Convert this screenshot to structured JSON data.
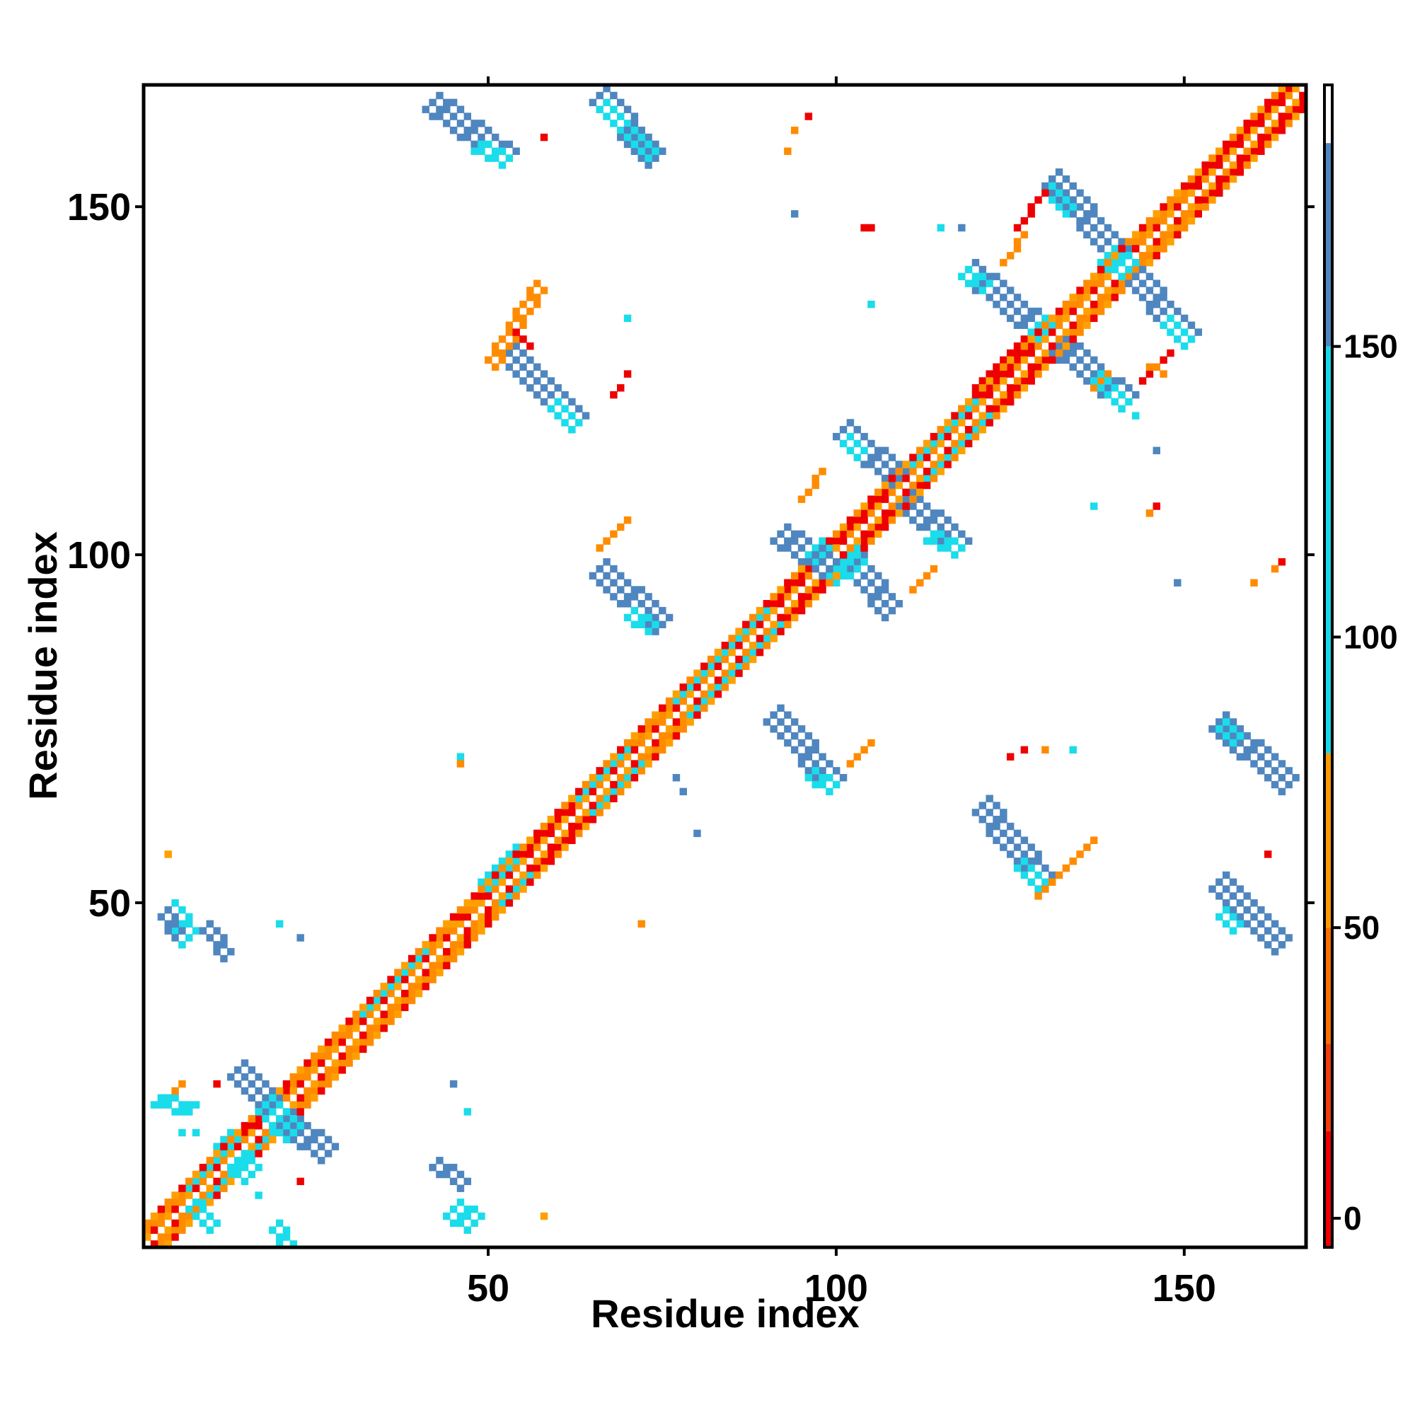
{
  "chart_data": {
    "type": "heatmap",
    "title": "",
    "xlabel": "Residue index",
    "ylabel": "Residue index",
    "xlim": [
      1,
      167
    ],
    "ylim": [
      1,
      167
    ],
    "x_ticks": [
      50,
      100,
      150
    ],
    "y_ticks": [
      50,
      100,
      150
    ],
    "grid": false,
    "colorbar": {
      "position": "right",
      "ticks": [
        0,
        50,
        100,
        150
      ],
      "range": [
        -5,
        195
      ],
      "bands": [
        {
          "from": -5,
          "to": 15,
          "color": "#ee0000"
        },
        {
          "from": 15,
          "to": 30,
          "color": "#f03c0c"
        },
        {
          "from": 30,
          "to": 50,
          "color": "#fa6e00"
        },
        {
          "from": 50,
          "to": 80,
          "color": "#ff9900"
        },
        {
          "from": 80,
          "to": 150,
          "color": "#19d7eb"
        },
        {
          "from": 150,
          "to": 185,
          "color": "#4f86bf"
        },
        {
          "from": 185,
          "to": 195,
          "color": "#ffffff"
        }
      ]
    },
    "colors": {
      "red": "#ee0000",
      "orange_red": "#f84400",
      "orange": "#ff8c00",
      "amber": "#ffa000",
      "cyan": "#1adcea",
      "steel_blue": "#4f86bf"
    },
    "main_diagonal": {
      "from": 1,
      "to": 167,
      "band_width": 3,
      "pattern": [
        "red",
        "orange",
        "amber",
        "white"
      ]
    },
    "segments": [
      {
        "x1": 2,
        "y1": 2,
        "x2": 25,
        "y2": 25,
        "w": 3,
        "color": "orange"
      },
      {
        "x1": 8,
        "y1": 8,
        "x2": 18,
        "y2": 18,
        "w": 3,
        "color": "cyan"
      },
      {
        "x1": 16,
        "y1": 16,
        "x2": 22,
        "y2": 22,
        "w": 2,
        "color": "red"
      },
      {
        "x1": 26,
        "y1": 26,
        "x2": 45,
        "y2": 45,
        "w": 3,
        "color": "orange"
      },
      {
        "x1": 33,
        "y1": 33,
        "x2": 42,
        "y2": 42,
        "w": 2,
        "color": "cyan"
      },
      {
        "x1": 51,
        "y1": 51,
        "x2": 56,
        "y2": 56,
        "w": 4,
        "color": "cyan"
      },
      {
        "x1": 56,
        "y1": 56,
        "x2": 64,
        "y2": 64,
        "w": 3,
        "color": "red"
      },
      {
        "x1": 64,
        "y1": 64,
        "x2": 72,
        "y2": 72,
        "w": 3,
        "color": "cyan"
      },
      {
        "x1": 72,
        "y1": 72,
        "x2": 80,
        "y2": 80,
        "w": 3,
        "color": "orange"
      },
      {
        "x1": 78,
        "y1": 78,
        "x2": 92,
        "y2": 92,
        "w": 3,
        "color": "cyan"
      },
      {
        "x1": 92,
        "y1": 92,
        "x2": 112,
        "y2": 112,
        "w": 3,
        "color": "red"
      },
      {
        "x1": 112,
        "y1": 112,
        "x2": 122,
        "y2": 122,
        "w": 3,
        "color": "cyan"
      },
      {
        "x1": 122,
        "y1": 122,
        "x2": 130,
        "y2": 130,
        "w": 4,
        "color": "red"
      },
      {
        "x1": 130,
        "y1": 130,
        "x2": 152,
        "y2": 152,
        "w": 3,
        "color": "orange"
      },
      {
        "x1": 152,
        "y1": 152,
        "x2": 166,
        "y2": 166,
        "w": 3,
        "color": "red"
      },
      {
        "x1": 3,
        "y1": 22,
        "x2": 8,
        "y2": 21,
        "w": 2,
        "color": "cyan"
      },
      {
        "x1": 5,
        "y1": 23,
        "x2": 6,
        "y2": 24,
        "w": 1,
        "color": "orange"
      },
      {
        "x1": 14,
        "y1": 26,
        "x2": 22,
        "y2": 18,
        "w": 3,
        "color": "steel_blue"
      },
      {
        "x1": 18,
        "y1": 21,
        "x2": 27,
        "y2": 14,
        "w": 3,
        "color": "steel_blue"
      },
      {
        "x1": 18,
        "y1": 21,
        "x2": 22,
        "y2": 17,
        "w": 3,
        "color": "cyan"
      },
      {
        "x1": 12,
        "y1": 16,
        "x2": 16,
        "y2": 11,
        "w": 3,
        "color": "cyan"
      },
      {
        "x1": 8,
        "y1": 7,
        "x2": 11,
        "y2": 4,
        "w": 2,
        "color": "cyan"
      },
      {
        "x1": 20,
        "y1": 4,
        "x2": 22,
        "y2": 1,
        "w": 2,
        "color": "cyan"
      },
      {
        "x1": 4,
        "y1": 49,
        "x2": 7,
        "y2": 45,
        "w": 3,
        "color": "cyan"
      },
      {
        "x1": 4,
        "y1": 49,
        "x2": 6,
        "y2": 46,
        "w": 2,
        "color": "steel_blue"
      },
      {
        "x1": 10,
        "y1": 47,
        "x2": 13,
        "y2": 43,
        "w": 2,
        "color": "steel_blue"
      },
      {
        "x1": 43,
        "y1": 13,
        "x2": 47,
        "y2": 10,
        "w": 2,
        "color": "steel_blue"
      },
      {
        "x1": 45,
        "y1": 6,
        "x2": 48,
        "y2": 4,
        "w": 3,
        "color": "cyan"
      },
      {
        "x1": 42,
        "y1": 165,
        "x2": 53,
        "y2": 157,
        "w": 3,
        "color": "steel_blue"
      },
      {
        "x1": 49,
        "y1": 159,
        "x2": 53,
        "y2": 157,
        "w": 2,
        "color": "cyan"
      },
      {
        "x1": 66,
        "y1": 166,
        "x2": 74,
        "y2": 157,
        "w": 3,
        "color": "steel_blue"
      },
      {
        "x1": 67,
        "y1": 165,
        "x2": 74,
        "y2": 158,
        "w": 2,
        "color": "cyan"
      },
      {
        "x1": 53,
        "y1": 129,
        "x2": 63,
        "y2": 119,
        "w": 3,
        "color": "steel_blue"
      },
      {
        "x1": 60,
        "y1": 122,
        "x2": 63,
        "y2": 119,
        "w": 2,
        "color": "cyan"
      },
      {
        "x1": 51,
        "y1": 127,
        "x2": 58,
        "y2": 138,
        "w": 2,
        "color": "orange"
      },
      {
        "x1": 54,
        "y1": 132,
        "x2": 56,
        "y2": 130,
        "w": 1,
        "color": "red"
      },
      {
        "x1": 66,
        "y1": 98,
        "x2": 75,
        "y2": 90,
        "w": 3,
        "color": "steel_blue"
      },
      {
        "x1": 71,
        "y1": 92,
        "x2": 74,
        "y2": 90,
        "w": 2,
        "color": "cyan"
      },
      {
        "x1": 66,
        "y1": 101,
        "x2": 70,
        "y2": 105,
        "w": 1,
        "color": "orange"
      },
      {
        "x1": 92,
        "y1": 103,
        "x2": 101,
        "y2": 97,
        "w": 3,
        "color": "steel_blue"
      },
      {
        "x1": 97,
        "y1": 101,
        "x2": 101,
        "y2": 97,
        "w": 3,
        "color": "cyan"
      },
      {
        "x1": 101,
        "y1": 101,
        "x2": 108,
        "y2": 92,
        "w": 3,
        "color": "steel_blue"
      },
      {
        "x1": 101,
        "y1": 101,
        "x2": 103,
        "y2": 98,
        "w": 3,
        "color": "cyan"
      },
      {
        "x1": 101,
        "y1": 118,
        "x2": 110,
        "y2": 110,
        "w": 3,
        "color": "steel_blue"
      },
      {
        "x1": 102,
        "y1": 117,
        "x2": 104,
        "y2": 115,
        "w": 2,
        "color": "cyan"
      },
      {
        "x1": 109,
        "y1": 109,
        "x2": 118,
        "y2": 101,
        "w": 3,
        "color": "steel_blue"
      },
      {
        "x1": 114,
        "y1": 103,
        "x2": 118,
        "y2": 101,
        "w": 2,
        "color": "cyan"
      },
      {
        "x1": 95,
        "y1": 108,
        "x2": 98,
        "y2": 112,
        "w": 1,
        "color": "orange"
      },
      {
        "x1": 111,
        "y1": 95,
        "x2": 114,
        "y2": 98,
        "w": 1,
        "color": "orange"
      },
      {
        "x1": 91,
        "y1": 77,
        "x2": 100,
        "y2": 67,
        "w": 3,
        "color": "steel_blue"
      },
      {
        "x1": 97,
        "y1": 69,
        "x2": 100,
        "y2": 67,
        "w": 2,
        "color": "cyan"
      },
      {
        "x1": 102,
        "y1": 70,
        "x2": 105,
        "y2": 73,
        "w": 1,
        "color": "orange"
      },
      {
        "x1": 121,
        "y1": 64,
        "x2": 130,
        "y2": 53,
        "w": 3,
        "color": "steel_blue"
      },
      {
        "x1": 127,
        "y1": 56,
        "x2": 130,
        "y2": 53,
        "w": 2,
        "color": "cyan"
      },
      {
        "x1": 129,
        "y1": 51,
        "x2": 137,
        "y2": 59,
        "w": 1,
        "color": "orange"
      },
      {
        "x1": 155,
        "y1": 76,
        "x2": 165,
        "y2": 67,
        "w": 3,
        "color": "steel_blue"
      },
      {
        "x1": 156,
        "y1": 76,
        "x2": 158,
        "y2": 74,
        "w": 2,
        "color": "cyan"
      },
      {
        "x1": 155,
        "y1": 53,
        "x2": 164,
        "y2": 44,
        "w": 3,
        "color": "steel_blue"
      },
      {
        "x1": 156,
        "y1": 49,
        "x2": 158,
        "y2": 47,
        "w": 2,
        "color": "cyan"
      },
      {
        "x1": 119,
        "y1": 141,
        "x2": 130,
        "y2": 132,
        "w": 3,
        "color": "steel_blue"
      },
      {
        "x1": 119,
        "y1": 141,
        "x2": 122,
        "y2": 139,
        "w": 2,
        "color": "cyan"
      },
      {
        "x1": 131,
        "y1": 154,
        "x2": 141,
        "y2": 143,
        "w": 3,
        "color": "steel_blue"
      },
      {
        "x1": 131,
        "y1": 153,
        "x2": 134,
        "y2": 150,
        "w": 2,
        "color": "cyan"
      },
      {
        "x1": 131,
        "y1": 131,
        "x2": 142,
        "y2": 122,
        "w": 3,
        "color": "steel_blue"
      },
      {
        "x1": 138,
        "y1": 126,
        "x2": 142,
        "y2": 122,
        "w": 2,
        "color": "cyan"
      },
      {
        "x1": 141,
        "y1": 142,
        "x2": 151,
        "y2": 131,
        "w": 3,
        "color": "steel_blue"
      },
      {
        "x1": 148,
        "y1": 134,
        "x2": 151,
        "y2": 131,
        "w": 2,
        "color": "cyan"
      },
      {
        "x1": 139,
        "y1": 143,
        "x2": 142,
        "y2": 141,
        "w": 3,
        "color": "cyan"
      },
      {
        "x1": 129,
        "y1": 131,
        "x2": 131,
        "y2": 133,
        "w": 3,
        "color": "cyan"
      },
      {
        "x1": 126,
        "y1": 147,
        "x2": 130,
        "y2": 152,
        "w": 1,
        "color": "red"
      },
      {
        "x1": 124,
        "y1": 142,
        "x2": 127,
        "y2": 146,
        "w": 1,
        "color": "orange"
      },
      {
        "x1": 144,
        "y1": 125,
        "x2": 148,
        "y2": 129,
        "w": 1,
        "color": "red"
      },
      {
        "x1": 145,
        "y1": 127,
        "x2": 147,
        "y2": 126,
        "w": 1,
        "color": "orange"
      },
      {
        "x1": 137,
        "y1": 124,
        "x2": 139,
        "y2": 126,
        "w": 1,
        "color": "orange"
      }
    ],
    "cells": [
      {
        "x": 4,
        "y": 57,
        "color": "amber"
      },
      {
        "x": 11,
        "y": 24,
        "color": "red"
      },
      {
        "x": 6,
        "y": 17,
        "color": "cyan"
      },
      {
        "x": 8,
        "y": 17,
        "color": "cyan"
      },
      {
        "x": 17,
        "y": 8,
        "color": "cyan"
      },
      {
        "x": 23,
        "y": 10,
        "color": "red"
      },
      {
        "x": 20,
        "y": 47,
        "color": "cyan"
      },
      {
        "x": 23,
        "y": 45,
        "color": "steel_blue"
      },
      {
        "x": 45,
        "y": 24,
        "color": "steel_blue"
      },
      {
        "x": 47,
        "y": 20,
        "color": "cyan"
      },
      {
        "x": 46,
        "y": 71,
        "color": "cyan"
      },
      {
        "x": 46,
        "y": 70,
        "color": "orange"
      },
      {
        "x": 58,
        "y": 160,
        "color": "red"
      },
      {
        "x": 58,
        "y": 5,
        "color": "amber"
      },
      {
        "x": 72,
        "y": 47,
        "color": "orange"
      },
      {
        "x": 70,
        "y": 134,
        "color": "cyan"
      },
      {
        "x": 70,
        "y": 126,
        "color": "red"
      },
      {
        "x": 69,
        "y": 124,
        "color": "red"
      },
      {
        "x": 68,
        "y": 123,
        "color": "red"
      },
      {
        "x": 77,
        "y": 68,
        "color": "steel_blue"
      },
      {
        "x": 78,
        "y": 66,
        "color": "steel_blue"
      },
      {
        "x": 80,
        "y": 60,
        "color": "steel_blue"
      },
      {
        "x": 93,
        "y": 158,
        "color": "orange"
      },
      {
        "x": 94,
        "y": 161,
        "color": "orange"
      },
      {
        "x": 96,
        "y": 163,
        "color": "red"
      },
      {
        "x": 94,
        "y": 149,
        "color": "steel_blue"
      },
      {
        "x": 104,
        "y": 147,
        "color": "red"
      },
      {
        "x": 105,
        "y": 147,
        "color": "red"
      },
      {
        "x": 105,
        "y": 136,
        "color": "cyan"
      },
      {
        "x": 115,
        "y": 147,
        "color": "cyan"
      },
      {
        "x": 118,
        "y": 147,
        "color": "steel_blue"
      },
      {
        "x": 125,
        "y": 71,
        "color": "red"
      },
      {
        "x": 127,
        "y": 72,
        "color": "red"
      },
      {
        "x": 130,
        "y": 72,
        "color": "orange"
      },
      {
        "x": 134,
        "y": 72,
        "color": "cyan"
      },
      {
        "x": 137,
        "y": 107,
        "color": "cyan"
      },
      {
        "x": 143,
        "y": 120,
        "color": "cyan"
      },
      {
        "x": 146,
        "y": 115,
        "color": "steel_blue"
      },
      {
        "x": 146,
        "y": 107,
        "color": "red"
      },
      {
        "x": 145,
        "y": 106,
        "color": "orange"
      },
      {
        "x": 149,
        "y": 96,
        "color": "steel_blue"
      },
      {
        "x": 160,
        "y": 96,
        "color": "orange"
      },
      {
        "x": 163,
        "y": 98,
        "color": "orange"
      },
      {
        "x": 164,
        "y": 99,
        "color": "red"
      },
      {
        "x": 162,
        "y": 57,
        "color": "red"
      }
    ]
  }
}
